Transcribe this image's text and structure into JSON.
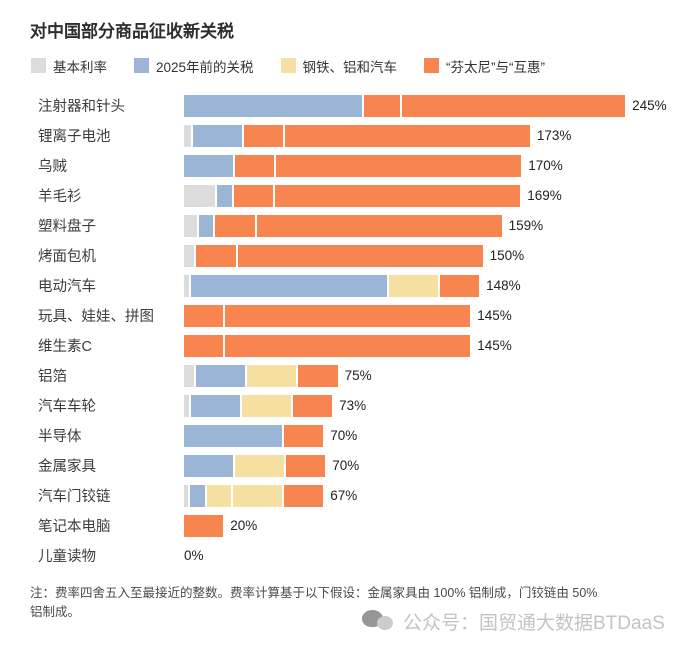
{
  "title": "对中国部分商品征收新关税",
  "legend": [
    {
      "key": "base",
      "label": "基本利率",
      "color": "#dcdcdc"
    },
    {
      "key": "pre2025",
      "label": "2025年前的关税",
      "color": "#9ab5d5"
    },
    {
      "key": "steel",
      "label": "钢铁、铝和汽车",
      "color": "#f5e0a2"
    },
    {
      "key": "fentanyl",
      "label": "“芬太尼”与“互惠”",
      "color": "#f8854f"
    }
  ],
  "chart_data": {
    "type": "bar",
    "orientation": "horizontal",
    "unit": "percent",
    "title": "对中国部分商品征收新关税",
    "legend_position": "top",
    "grid": false,
    "xlim": [
      0,
      245
    ],
    "colors": {
      "base": "#dcdcdc",
      "pre2025": "#9ab5d5",
      "steel": "#f5e0a2",
      "fentanyl": "#f8854f"
    },
    "series_names": {
      "base": "基本利率",
      "pre2025": "2025年前的关税",
      "steel": "钢铁、铝和汽车",
      "fentanyl": "“芬太尼”与“互惠”"
    },
    "rows": [
      {
        "category": "注射器和针头",
        "total": 245,
        "total_label": "245%",
        "segments": [
          {
            "key": "pre2025",
            "value": 100
          },
          {
            "key": "fentanyl",
            "value": 20
          },
          {
            "key": "fentanyl",
            "value": 125
          }
        ]
      },
      {
        "category": "锂离子电池",
        "total": 173,
        "total_label": "173%",
        "segments": [
          {
            "key": "base",
            "value": 3.4
          },
          {
            "key": "pre2025",
            "value": 25
          },
          {
            "key": "fentanyl",
            "value": 20
          },
          {
            "key": "fentanyl",
            "value": 125
          }
        ]
      },
      {
        "category": "乌贼",
        "total": 170,
        "total_label": "170%",
        "segments": [
          {
            "key": "pre2025",
            "value": 25
          },
          {
            "key": "fentanyl",
            "value": 20
          },
          {
            "key": "fentanyl",
            "value": 125
          }
        ]
      },
      {
        "category": "羊毛衫",
        "total": 169,
        "total_label": "169%",
        "segments": [
          {
            "key": "base",
            "value": 16
          },
          {
            "key": "pre2025",
            "value": 7.5
          },
          {
            "key": "fentanyl",
            "value": 20
          },
          {
            "key": "fentanyl",
            "value": 125
          }
        ]
      },
      {
        "category": "塑料盘子",
        "total": 159,
        "total_label": "159%",
        "segments": [
          {
            "key": "base",
            "value": 6.5
          },
          {
            "key": "pre2025",
            "value": 7.5
          },
          {
            "key": "fentanyl",
            "value": 20
          },
          {
            "key": "fentanyl",
            "value": 125
          }
        ]
      },
      {
        "category": "烤面包机",
        "total": 150,
        "total_label": "150%",
        "segments": [
          {
            "key": "base",
            "value": 5.3
          },
          {
            "key": "fentanyl",
            "value": 20
          },
          {
            "key": "fentanyl",
            "value": 125
          }
        ]
      },
      {
        "category": "电动汽车",
        "total": 148,
        "total_label": "148%",
        "segments": [
          {
            "key": "base",
            "value": 2.5
          },
          {
            "key": "pre2025",
            "value": 100
          },
          {
            "key": "steel",
            "value": 25
          },
          {
            "key": "fentanyl",
            "value": 20
          }
        ]
      },
      {
        "category": "玩具、娃娃、拼图",
        "total": 145,
        "total_label": "145%",
        "segments": [
          {
            "key": "fentanyl",
            "value": 20
          },
          {
            "key": "fentanyl",
            "value": 125
          }
        ]
      },
      {
        "category": "维生素C",
        "total": 145,
        "total_label": "145%",
        "segments": [
          {
            "key": "fentanyl",
            "value": 20
          },
          {
            "key": "fentanyl",
            "value": 125
          }
        ]
      },
      {
        "category": "铝箔",
        "total": 75,
        "total_label": "75%",
        "segments": [
          {
            "key": "base",
            "value": 5.3
          },
          {
            "key": "pre2025",
            "value": 25
          },
          {
            "key": "steel",
            "value": 25
          },
          {
            "key": "fentanyl",
            "value": 20
          }
        ]
      },
      {
        "category": "汽车车轮",
        "total": 73,
        "total_label": "73%",
        "segments": [
          {
            "key": "base",
            "value": 2.5
          },
          {
            "key": "pre2025",
            "value": 25
          },
          {
            "key": "steel",
            "value": 25
          },
          {
            "key": "fentanyl",
            "value": 20
          }
        ]
      },
      {
        "category": "半导体",
        "total": 70,
        "total_label": "70%",
        "segments": [
          {
            "key": "pre2025",
            "value": 50
          },
          {
            "key": "fentanyl",
            "value": 20
          }
        ]
      },
      {
        "category": "金属家具",
        "total": 70,
        "total_label": "70%",
        "segments": [
          {
            "key": "pre2025",
            "value": 25
          },
          {
            "key": "steel",
            "value": 25
          },
          {
            "key": "fentanyl",
            "value": 20
          }
        ]
      },
      {
        "category": "汽车门铰链",
        "total": 67,
        "total_label": "67%",
        "segments": [
          {
            "key": "base",
            "value": 2
          },
          {
            "key": "pre2025",
            "value": 7.5
          },
          {
            "key": "steel",
            "value": 12.5
          },
          {
            "key": "steel",
            "value": 25
          },
          {
            "key": "fentanyl",
            "value": 20
          }
        ]
      },
      {
        "category": "笔记本电脑",
        "total": 20,
        "total_label": "20%",
        "segments": [
          {
            "key": "fentanyl",
            "value": 20
          }
        ]
      },
      {
        "category": "儿童读物",
        "total": 0,
        "total_label": "0%",
        "segments": []
      }
    ]
  },
  "note_lines": [
    "注：费率四舍五入至最接近的整数。费率计算基于以下假设：金属家具由 100% 铝制成，门铰链由 50%",
    "铝制成。"
  ],
  "watermark": {
    "text": "公众号：国贸通大数据BTDaaS"
  }
}
